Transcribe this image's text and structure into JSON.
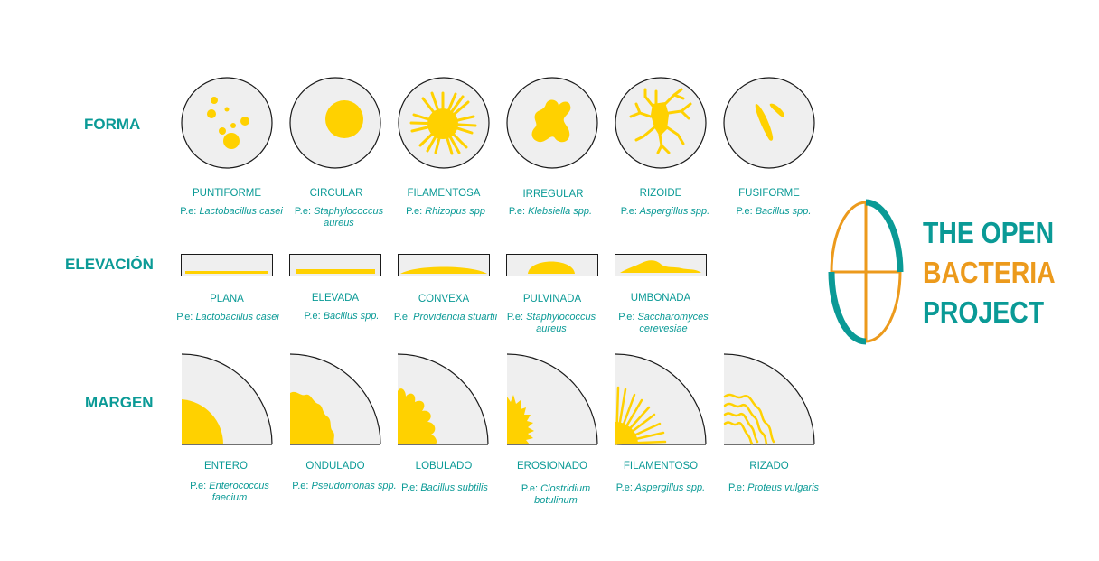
{
  "colors": {
    "teal": "#0a9a96",
    "orange": "#ec9a1c",
    "yellow": "#ffd100",
    "dish": "#efefef"
  },
  "sections": {
    "forma": "FORMA",
    "elevacion": "ELEVACIÓN",
    "margen": "MARGEN"
  },
  "forma": [
    {
      "label": "PUNTIFORME",
      "pre": "P.e:",
      "example": "Lactobacillus casei",
      "icon": "punctiform-colony-icon"
    },
    {
      "label": "CIRCULAR",
      "pre": "P.e:",
      "example": "Staphylococcus aureus",
      "icon": "circular-colony-icon"
    },
    {
      "label": "FILAMENTOSA",
      "pre": "P.e:",
      "example": "Rhizopus spp",
      "icon": "filamentous-colony-icon"
    },
    {
      "label": "IRREGULAR",
      "pre": "P.e:",
      "example": "Klebsiella spp.",
      "icon": "irregular-colony-icon"
    },
    {
      "label": "RIZOIDE",
      "pre": "P.e:",
      "example": "Aspergillus spp.",
      "icon": "rhizoid-colony-icon"
    },
    {
      "label": "FUSIFORME",
      "pre": "P.e:",
      "example": "Bacillus spp.",
      "icon": "fusiform-colony-icon"
    }
  ],
  "elevacion": [
    {
      "label": "PLANA",
      "pre": "P.e:",
      "example": "Lactobacillus casei",
      "icon": "flat-elevation-icon"
    },
    {
      "label": "ELEVADA",
      "pre": "P.e:",
      "example": "Bacillus spp.",
      "icon": "raised-elevation-icon"
    },
    {
      "label": "CONVEXA",
      "pre": "P.e:",
      "example": "Providencia stuartii",
      "icon": "convex-elevation-icon"
    },
    {
      "label": "PULVINADA",
      "pre": "P.e:",
      "example": "Staphylococcus aureus",
      "icon": "pulvinate-elevation-icon"
    },
    {
      "label": "UMBONADA",
      "pre": "P.e:",
      "example": "Saccharomyces cerevesiae",
      "icon": "umbonate-elevation-icon"
    }
  ],
  "margen": [
    {
      "label": "ENTERO",
      "pre": "P.e:",
      "example": "Enterococcus faecium",
      "icon": "entire-margin-icon"
    },
    {
      "label": "ONDULADO",
      "pre": "P.e:",
      "example": "Pseudomonas spp.",
      "icon": "undulate-margin-icon"
    },
    {
      "label": "LOBULADO",
      "pre": "P.e:",
      "example": "Bacillus subtilis",
      "icon": "lobate-margin-icon"
    },
    {
      "label": "EROSIONADO",
      "pre": "P.e:",
      "example": "Clostridium botulinum",
      "icon": "erose-margin-icon"
    },
    {
      "label": "FILAMENTOSO",
      "pre": "P.e:",
      "example": "Aspergillus spp.",
      "icon": "filamentous-margin-icon"
    },
    {
      "label": "RIZADO",
      "pre": "P.e:",
      "example": "Proteus vulgaris",
      "icon": "curled-margin-icon"
    }
  ],
  "logo": {
    "line1": "THE OPEN",
    "line2": "BACTERIA",
    "line3": "PROJECT",
    "icon": "petri-dish-logo-icon"
  }
}
